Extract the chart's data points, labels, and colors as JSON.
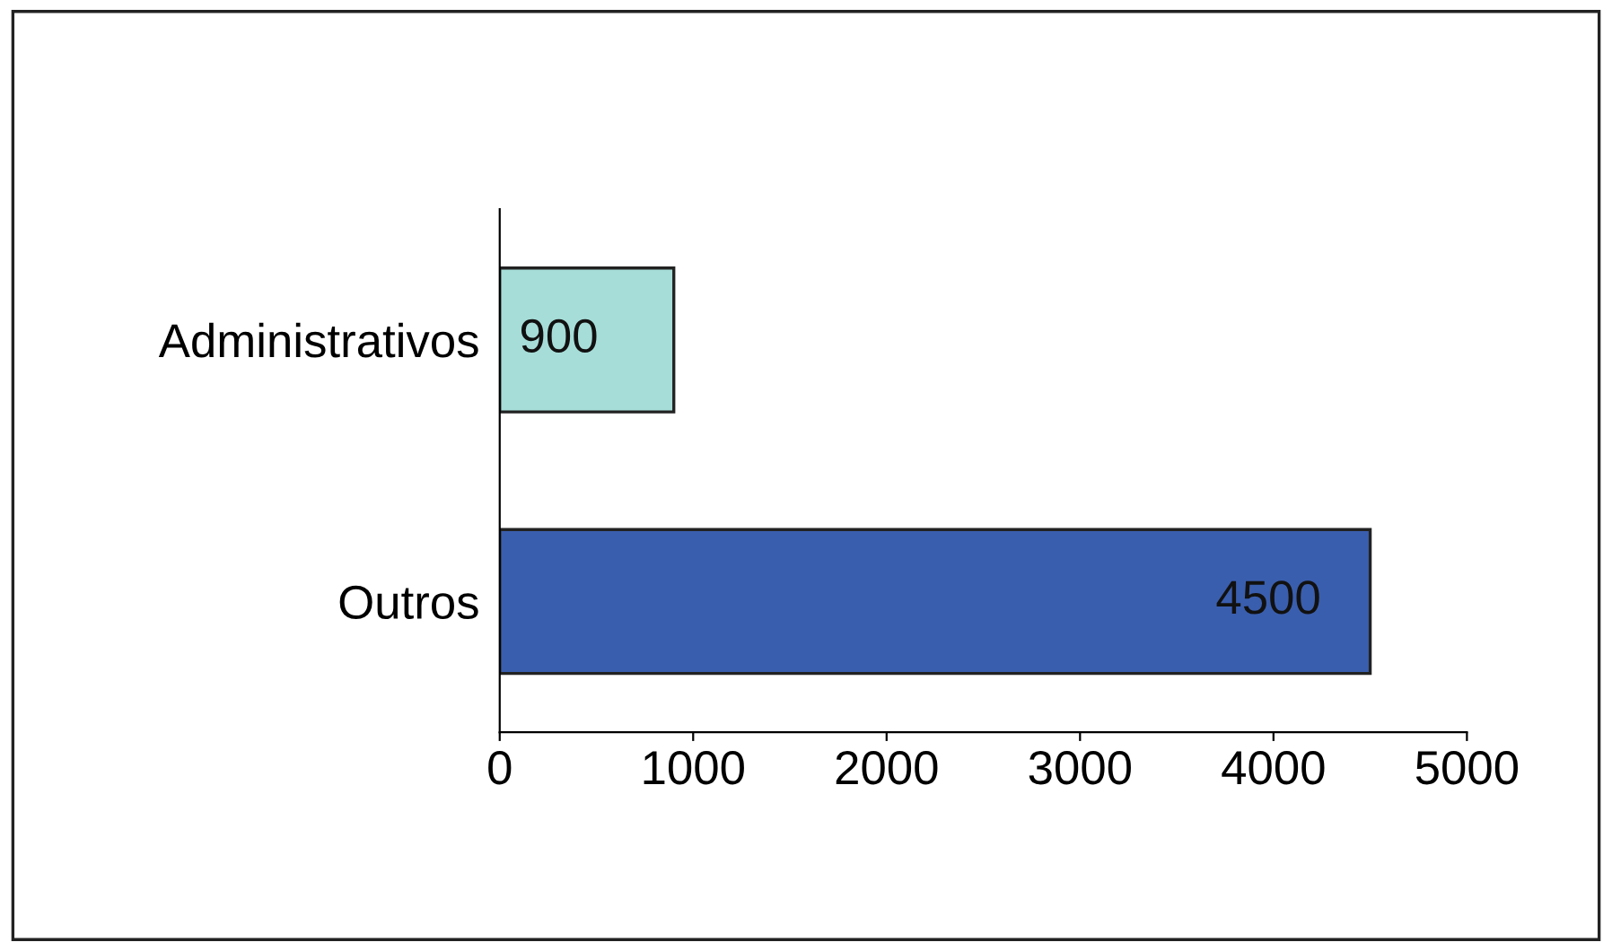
{
  "chart_data": {
    "type": "bar",
    "orientation": "horizontal",
    "categories": [
      "Administrativos",
      "Outros"
    ],
    "values": [
      900,
      4500
    ],
    "colors": [
      "#a6ddd8",
      "#3a5eae"
    ],
    "xlim": [
      0,
      5000
    ],
    "xticks": [
      0,
      1000,
      2000,
      3000,
      4000,
      5000
    ],
    "data_labels": true,
    "grid": false,
    "legend": false
  }
}
